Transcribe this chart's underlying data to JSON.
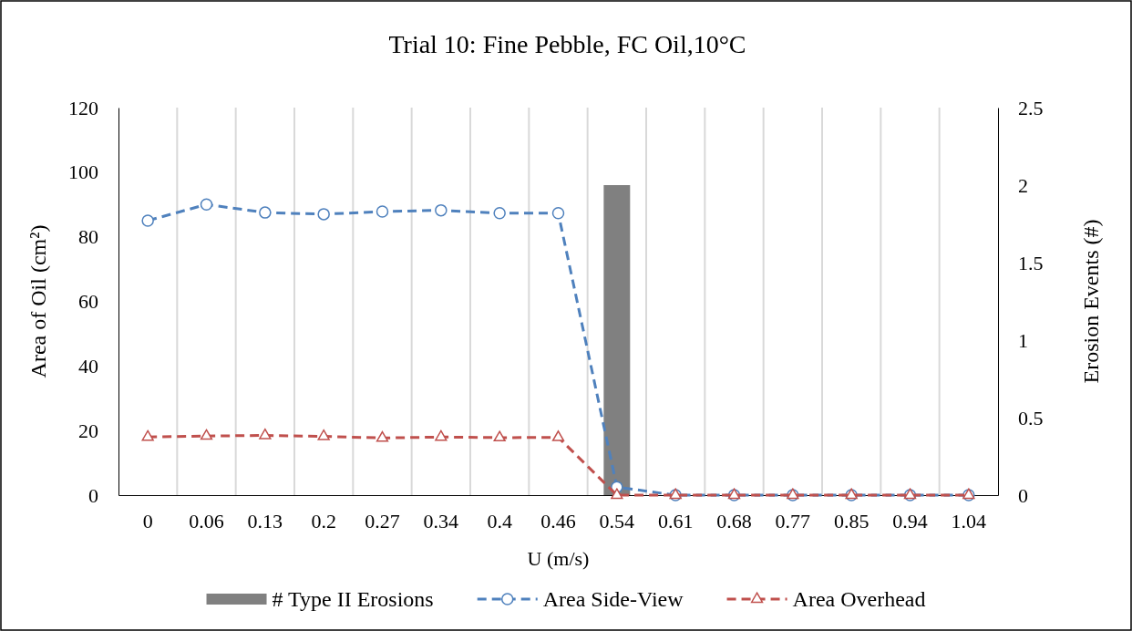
{
  "chart_data": {
    "type": "line",
    "title": "Trial 10: Fine Pebble, FC Oil,10°C",
    "xlabel": "U (m/s)",
    "ylabel": "Area of Oil (cm²)",
    "y2label": "Erosion Events (#)",
    "categories": [
      "0",
      "0.06",
      "0.13",
      "0.2",
      "0.27",
      "0.34",
      "0.4",
      "0.46",
      "0.54",
      "0.61",
      "0.68",
      "0.77",
      "0.85",
      "0.94",
      "1.04"
    ],
    "series": [
      {
        "name": "# Type II Erosions",
        "type": "bar",
        "axis": "y2",
        "color": "#808080",
        "values": [
          0,
          0,
          0,
          0,
          0,
          0,
          0,
          0,
          2,
          0,
          0,
          0,
          0,
          0,
          0
        ]
      },
      {
        "name": "Area Side-View",
        "color": "#4f81bd",
        "marker": "circle",
        "line_style": "dashed",
        "values": [
          85,
          90,
          87.5,
          87,
          87.8,
          88.2,
          87.3,
          87.3,
          2.5,
          0,
          0,
          0,
          0,
          0,
          0
        ]
      },
      {
        "name": "Area Overhead",
        "color": "#c0504d",
        "marker": "triangle",
        "line_style": "dashed",
        "values": [
          18,
          18.3,
          18.5,
          18.2,
          17.7,
          18,
          17.8,
          17.9,
          0,
          0,
          0,
          0,
          0,
          0,
          0
        ]
      }
    ],
    "ylim": [
      0,
      120
    ],
    "yticks": [
      0,
      20,
      40,
      60,
      80,
      100,
      120
    ],
    "y2lim": [
      0,
      2.5
    ],
    "y2ticks": [
      0,
      0.5,
      1,
      1.5,
      2,
      2.5
    ],
    "grid": "x",
    "legend": "bottom"
  }
}
